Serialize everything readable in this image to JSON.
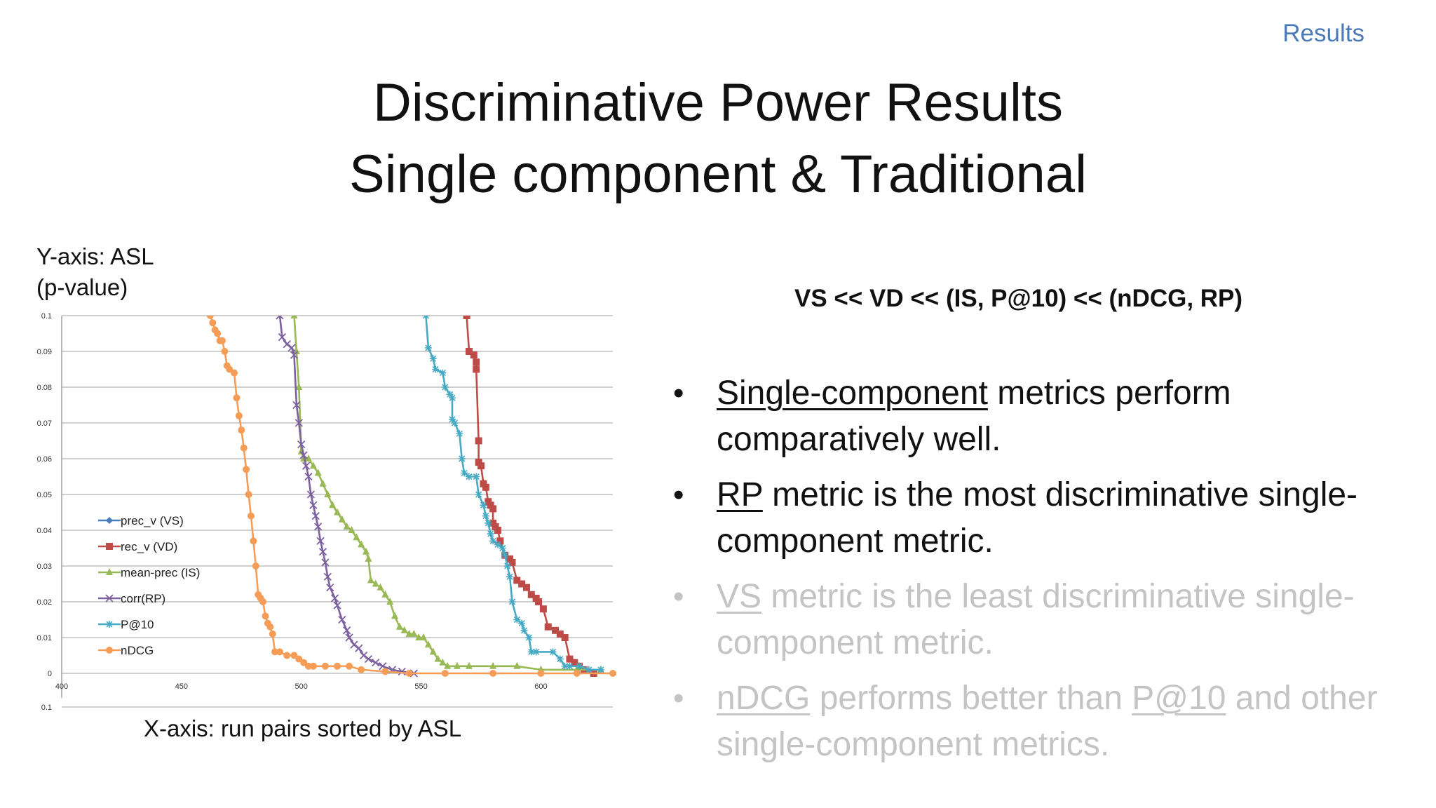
{
  "header": {
    "section": "Results"
  },
  "title": {
    "line1": "Discriminative Power Results",
    "line2": "Single component & Traditional"
  },
  "axis_notes": {
    "y_line1": "Y-axis: ASL",
    "y_line2": "(p-value)",
    "x": "X-axis: run pairs sorted by ASL"
  },
  "ordering": "VS << VD << (IS, P@10) << (nDCG, RP)",
  "bullets": [
    {
      "u": "Single-component",
      "rest": " metrics perform comparatively well.",
      "dim": false
    },
    {
      "u": "RP",
      "rest": " metric is the most discriminative single-component metric.",
      "dim": false
    },
    {
      "u": "VS",
      "rest": " metric is the least discriminative single-component metric.",
      "dim": true
    },
    {
      "u": "nDCG",
      "mid": " performs better than ",
      "u2": "P@10",
      "rest": " and other single-component metrics.",
      "dim": true
    }
  ],
  "chart_data": {
    "type": "line",
    "xlim": [
      400,
      630
    ],
    "ylim": [
      0,
      0.1
    ],
    "x_ticks": [
      "400",
      "450",
      "500",
      "550",
      "600"
    ],
    "y_ticks": [
      "0",
      "0.01",
      "0.02",
      "0.03",
      "0.04",
      "0.05",
      "0.06",
      "0.07",
      "0.08",
      "0.09",
      "0.1"
    ],
    "secondary_tick_label": "0.1",
    "grid": true,
    "legend_position": "lower-left",
    "series": [
      {
        "name": "prec_v (VS)",
        "color": "#4a7ebb",
        "marker": "diamond",
        "points": []
      },
      {
        "name": "rec_v (VD)",
        "color": "#be4b48",
        "marker": "square",
        "points": [
          [
            569,
            0.1
          ],
          [
            570,
            0.09
          ],
          [
            572,
            0.089
          ],
          [
            573,
            0.087
          ],
          [
            573,
            0.085
          ],
          [
            574,
            0.065
          ],
          [
            574,
            0.059
          ],
          [
            575,
            0.058
          ],
          [
            576,
            0.053
          ],
          [
            577,
            0.052
          ],
          [
            578,
            0.048
          ],
          [
            579,
            0.047
          ],
          [
            580,
            0.046
          ],
          [
            580,
            0.042
          ],
          [
            581,
            0.041
          ],
          [
            582,
            0.04
          ],
          [
            583,
            0.037
          ],
          [
            585,
            0.033
          ],
          [
            587,
            0.032
          ],
          [
            588,
            0.031
          ],
          [
            590,
            0.026
          ],
          [
            592,
            0.025
          ],
          [
            594,
            0.024
          ],
          [
            596,
            0.022
          ],
          [
            598,
            0.021
          ],
          [
            599,
            0.02
          ],
          [
            601,
            0.018
          ],
          [
            603,
            0.013
          ],
          [
            606,
            0.012
          ],
          [
            608,
            0.011
          ],
          [
            610,
            0.01
          ],
          [
            612,
            0.004
          ],
          [
            614,
            0.003
          ],
          [
            616,
            0.002
          ],
          [
            618,
            0.001
          ],
          [
            622,
            0
          ]
        ]
      },
      {
        "name": "mean-prec (IS)",
        "color": "#98b954",
        "marker": "triangle",
        "points": [
          [
            497,
            0.1
          ],
          [
            498,
            0.09
          ],
          [
            499,
            0.08
          ],
          [
            500,
            0.062
          ],
          [
            501,
            0.06
          ],
          [
            503,
            0.06
          ],
          [
            505,
            0.058
          ],
          [
            507,
            0.056
          ],
          [
            509,
            0.053
          ],
          [
            511,
            0.05
          ],
          [
            513,
            0.047
          ],
          [
            515,
            0.045
          ],
          [
            517,
            0.043
          ],
          [
            519,
            0.041
          ],
          [
            521,
            0.04
          ],
          [
            523,
            0.038
          ],
          [
            525,
            0.036
          ],
          [
            527,
            0.034
          ],
          [
            528,
            0.032
          ],
          [
            529,
            0.026
          ],
          [
            531,
            0.025
          ],
          [
            533,
            0.024
          ],
          [
            535,
            0.022
          ],
          [
            537,
            0.02
          ],
          [
            539,
            0.016
          ],
          [
            541,
            0.013
          ],
          [
            543,
            0.012
          ],
          [
            545,
            0.011
          ],
          [
            547,
            0.011
          ],
          [
            549,
            0.01
          ],
          [
            551,
            0.01
          ],
          [
            553,
            0.008
          ],
          [
            555,
            0.006
          ],
          [
            557,
            0.004
          ],
          [
            559,
            0.003
          ],
          [
            561,
            0.002
          ],
          [
            565,
            0.002
          ],
          [
            570,
            0.002
          ],
          [
            580,
            0.002
          ],
          [
            590,
            0.002
          ],
          [
            600,
            0.001
          ],
          [
            615,
            0.001
          ],
          [
            625,
            0.001
          ]
        ]
      },
      {
        "name": "corr(RP)",
        "color": "#7d60a0",
        "marker": "x",
        "points": [
          [
            491,
            0.1
          ],
          [
            492,
            0.094
          ],
          [
            494,
            0.092
          ],
          [
            496,
            0.091
          ],
          [
            497,
            0.089
          ],
          [
            498,
            0.075
          ],
          [
            499,
            0.07
          ],
          [
            500,
            0.064
          ],
          [
            501,
            0.061
          ],
          [
            502,
            0.058
          ],
          [
            503,
            0.055
          ],
          [
            504,
            0.05
          ],
          [
            505,
            0.047
          ],
          [
            506,
            0.044
          ],
          [
            507,
            0.041
          ],
          [
            508,
            0.037
          ],
          [
            509,
            0.034
          ],
          [
            510,
            0.031
          ],
          [
            511,
            0.027
          ],
          [
            512,
            0.024
          ],
          [
            514,
            0.021
          ],
          [
            515,
            0.019
          ],
          [
            517,
            0.015
          ],
          [
            519,
            0.012
          ],
          [
            520,
            0.01
          ],
          [
            522,
            0.008
          ],
          [
            524,
            0.007
          ],
          [
            526,
            0.005
          ],
          [
            528,
            0.004
          ],
          [
            531,
            0.003
          ],
          [
            534,
            0.002
          ],
          [
            538,
            0.001
          ],
          [
            542,
            0.0005
          ],
          [
            547,
            0
          ]
        ]
      },
      {
        "name": "P@10",
        "color": "#46aac5",
        "marker": "star",
        "points": [
          [
            552,
            0.1
          ],
          [
            553,
            0.091
          ],
          [
            555,
            0.088
          ],
          [
            556,
            0.085
          ],
          [
            559,
            0.084
          ],
          [
            560,
            0.08
          ],
          [
            562,
            0.078
          ],
          [
            563,
            0.077
          ],
          [
            563,
            0.071
          ],
          [
            564,
            0.07
          ],
          [
            566,
            0.067
          ],
          [
            567,
            0.06
          ],
          [
            568,
            0.056
          ],
          [
            570,
            0.055
          ],
          [
            573,
            0.055
          ],
          [
            574,
            0.05
          ],
          [
            576,
            0.047
          ],
          [
            577,
            0.044
          ],
          [
            578,
            0.042
          ],
          [
            579,
            0.039
          ],
          [
            580,
            0.037
          ],
          [
            582,
            0.036
          ],
          [
            584,
            0.035
          ],
          [
            585,
            0.033
          ],
          [
            586,
            0.03
          ],
          [
            587,
            0.027
          ],
          [
            588,
            0.02
          ],
          [
            590,
            0.015
          ],
          [
            592,
            0.014
          ],
          [
            593,
            0.012
          ],
          [
            595,
            0.01
          ],
          [
            596,
            0.006
          ],
          [
            598,
            0.006
          ],
          [
            605,
            0.006
          ],
          [
            608,
            0.004
          ],
          [
            610,
            0.002
          ],
          [
            612,
            0.002
          ],
          [
            616,
            0.002
          ],
          [
            620,
            0.001
          ],
          [
            625,
            0.001
          ]
        ]
      },
      {
        "name": "nDCG",
        "color": "#f59d56",
        "marker": "circle",
        "points": [
          [
            462,
            0.1
          ],
          [
            463,
            0.098
          ],
          [
            464,
            0.096
          ],
          [
            465,
            0.095
          ],
          [
            466,
            0.093
          ],
          [
            467,
            0.093
          ],
          [
            468,
            0.09
          ],
          [
            469,
            0.086
          ],
          [
            470,
            0.085
          ],
          [
            472,
            0.084
          ],
          [
            473,
            0.077
          ],
          [
            474,
            0.072
          ],
          [
            475,
            0.068
          ],
          [
            476,
            0.063
          ],
          [
            477,
            0.057
          ],
          [
            478,
            0.05
          ],
          [
            479,
            0.044
          ],
          [
            480,
            0.037
          ],
          [
            481,
            0.03
          ],
          [
            482,
            0.022
          ],
          [
            483,
            0.021
          ],
          [
            484,
            0.02
          ],
          [
            485,
            0.016
          ],
          [
            486,
            0.014
          ],
          [
            487,
            0.013
          ],
          [
            488,
            0.011
          ],
          [
            489,
            0.006
          ],
          [
            491,
            0.006
          ],
          [
            494,
            0.005
          ],
          [
            497,
            0.005
          ],
          [
            499,
            0.004
          ],
          [
            501,
            0.003
          ],
          [
            503,
            0.002
          ],
          [
            505,
            0.002
          ],
          [
            510,
            0.002
          ],
          [
            515,
            0.002
          ],
          [
            520,
            0.002
          ],
          [
            525,
            0.001
          ],
          [
            535,
            0.0005
          ],
          [
            545,
            0
          ],
          [
            560,
            0
          ],
          [
            580,
            0
          ],
          [
            600,
            0
          ],
          [
            615,
            0
          ],
          [
            630,
            0
          ]
        ]
      }
    ]
  }
}
